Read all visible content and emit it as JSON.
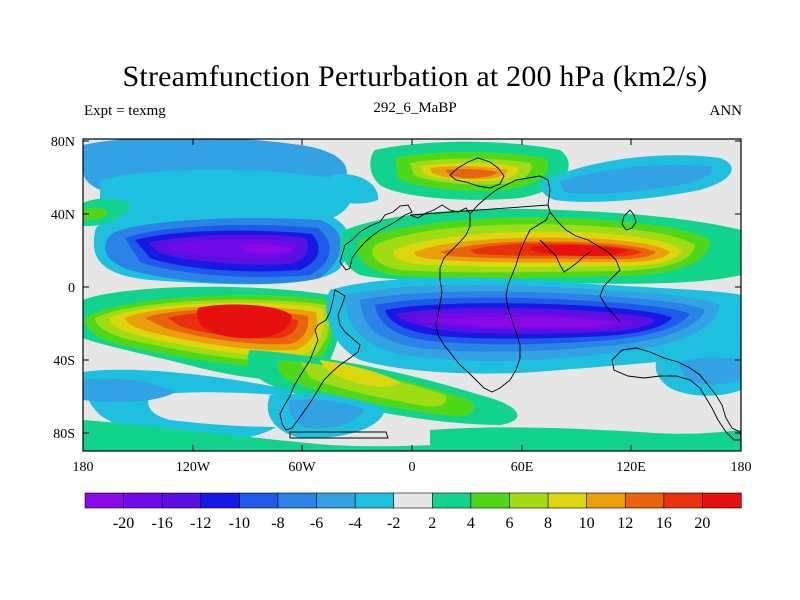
{
  "title": "Streamfunction Perturbation at 200 hPa (km2/s)",
  "subtitle_left": "Expt = texmg",
  "subtitle_center": "292_6_MaBP",
  "subtitle_right": "ANN",
  "lat_ticks": [
    "80N",
    "40N",
    "0",
    "40S",
    "80S"
  ],
  "lon_ticks": [
    "180",
    "120W",
    "60W",
    "0",
    "60E",
    "120E",
    "180"
  ],
  "colorbar": {
    "labels": [
      "-20",
      "-16",
      "-12",
      "-10",
      "-8",
      "-6",
      "-4",
      "-2",
      "2",
      "4",
      "6",
      "8",
      "10",
      "12",
      "16",
      "20"
    ],
    "colors": [
      "#8a0ae6",
      "#7209e8",
      "#5a10e0",
      "#1818e6",
      "#1e5ae8",
      "#2a84e6",
      "#32a2e2",
      "#1fbfe0",
      "#e6e6e6",
      "#12d38c",
      "#4fd81a",
      "#a0dc14",
      "#dcd60c",
      "#eaa00a",
      "#e8640c",
      "#e8300c",
      "#e61010"
    ]
  },
  "colors": {
    "background": "#e6e6e6",
    "outline": "#000000"
  }
}
